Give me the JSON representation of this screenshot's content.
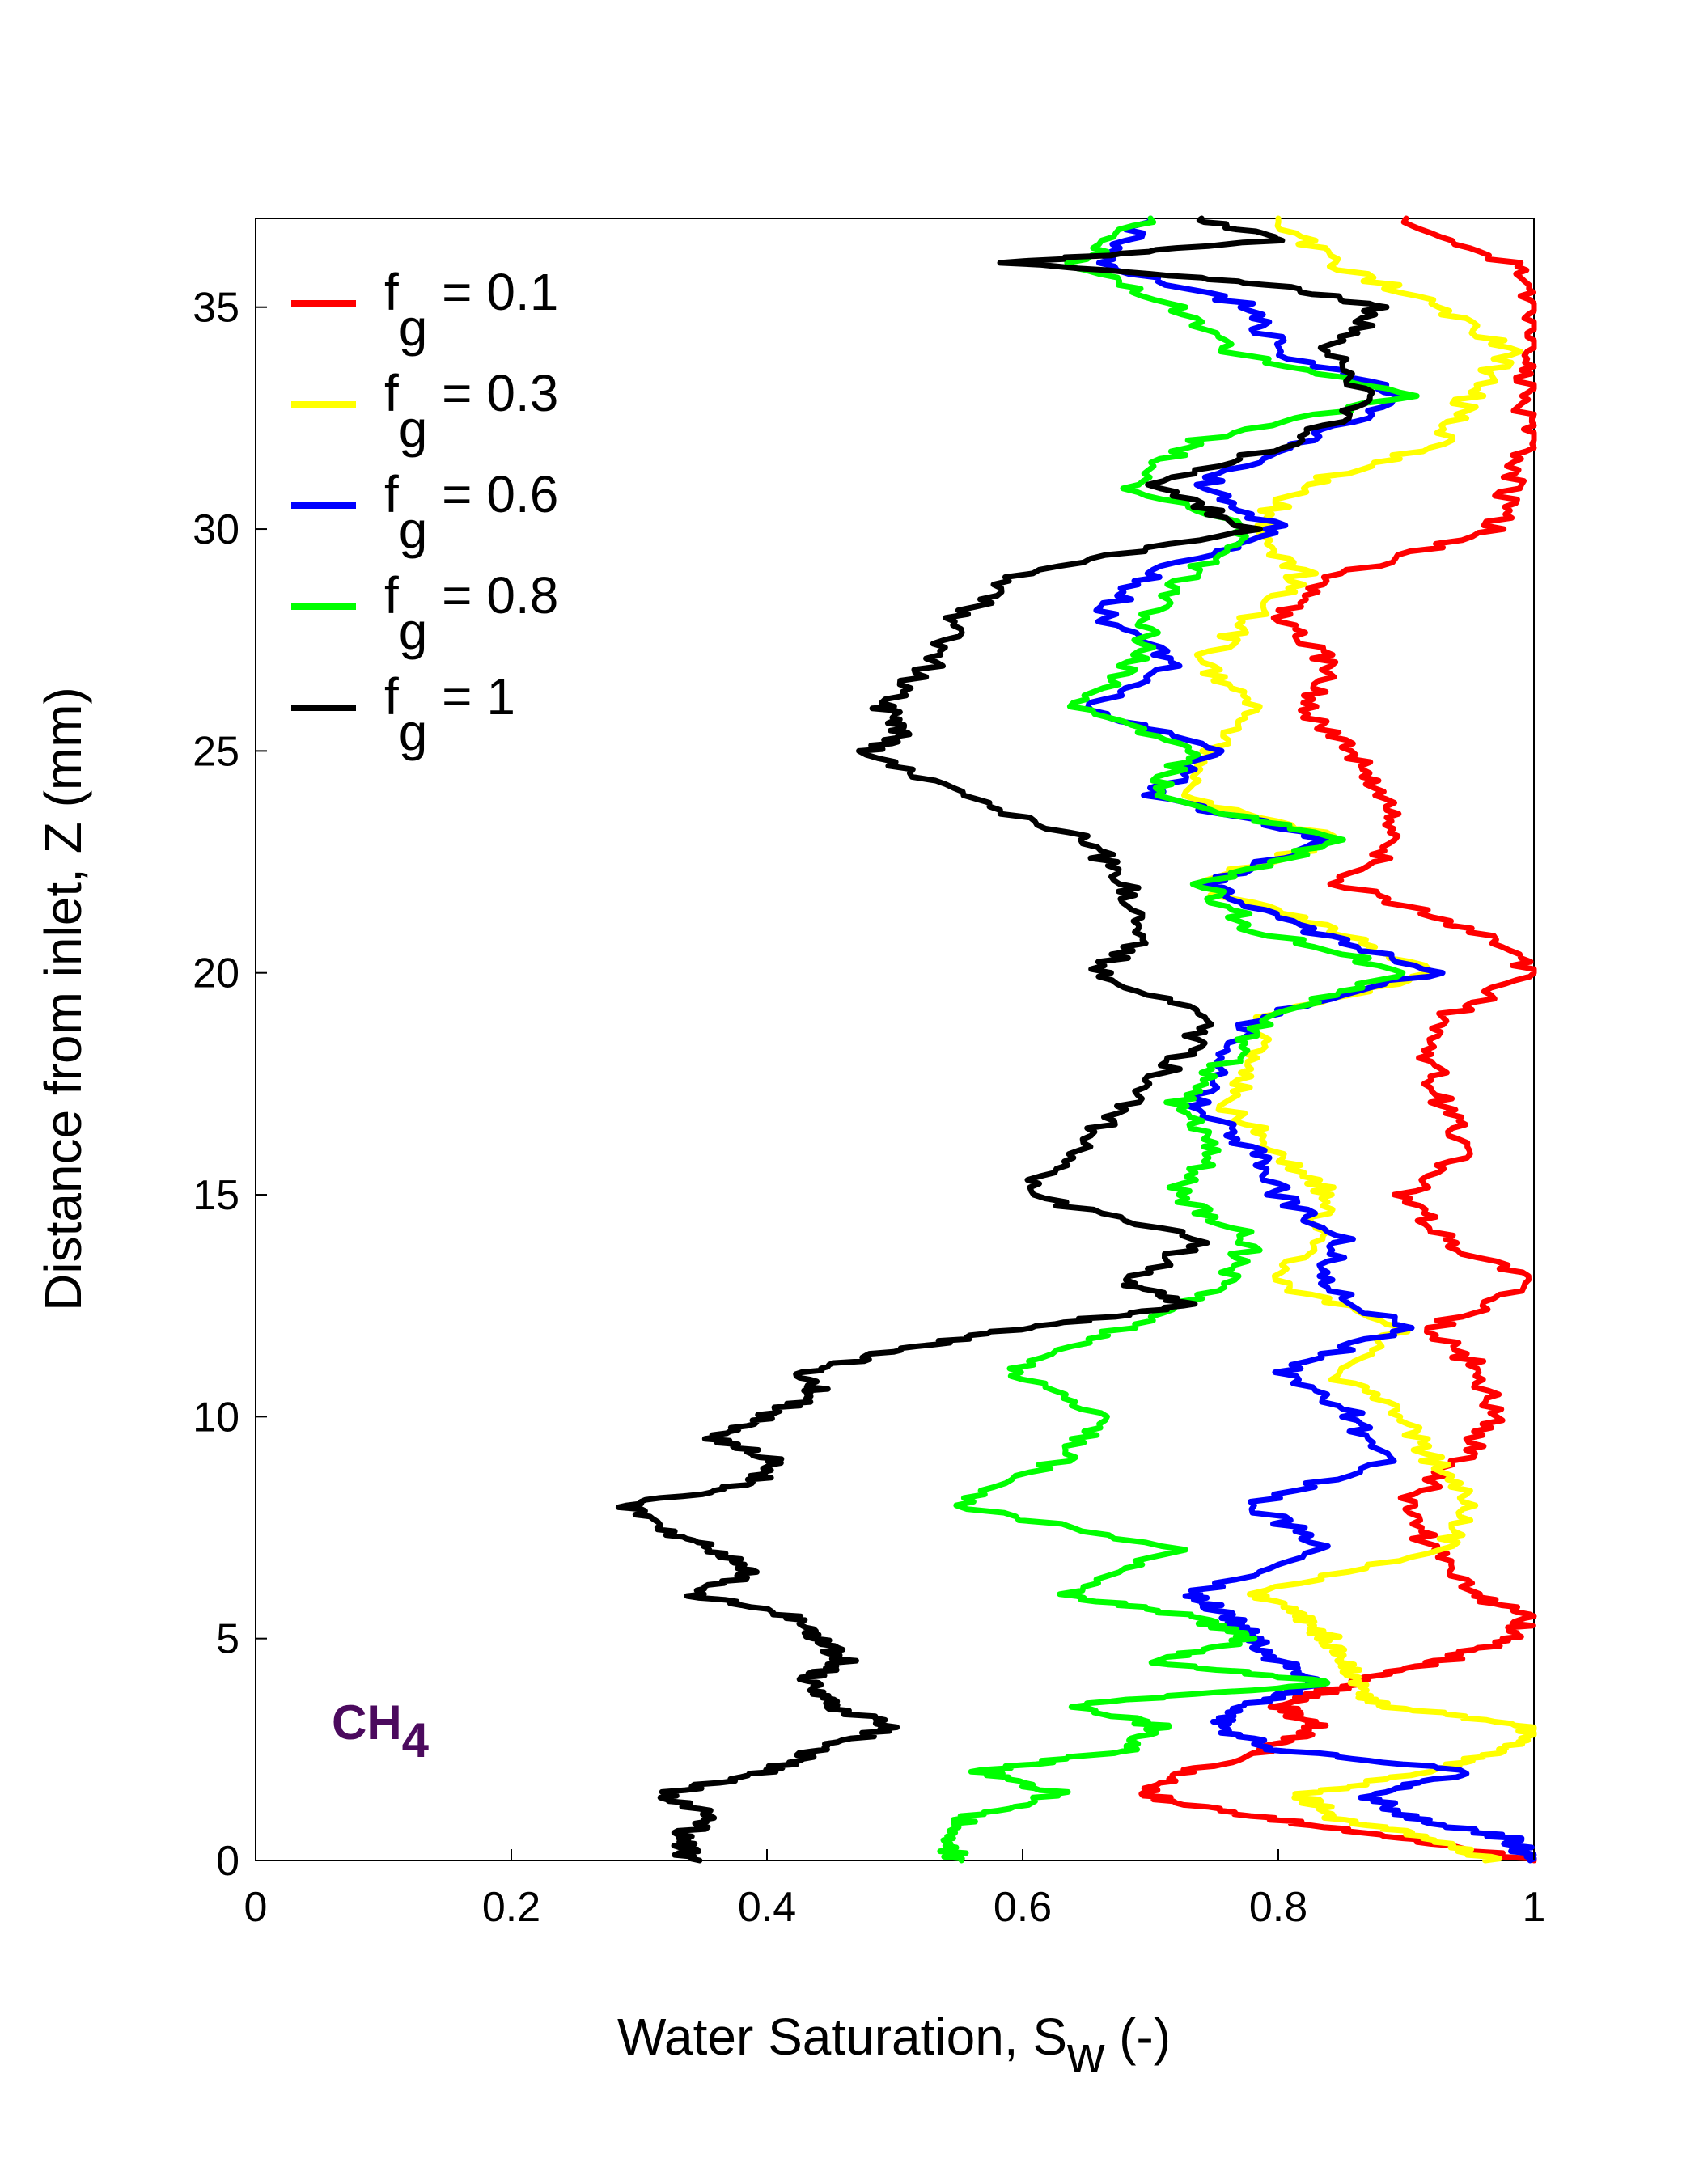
{
  "chart_data": {
    "type": "line",
    "orientation": "vertical-profile",
    "xlabel_main": "Water Saturation, S",
    "xlabel_sub": "w",
    "xlabel_tail": " (-)",
    "ylabel": "Distance from inlet, Z (mm)",
    "xlim": [
      0,
      1
    ],
    "ylim": [
      0,
      37
    ],
    "xticks": [
      "0",
      "0.2",
      "0.4",
      "0.6",
      "0.8",
      "1"
    ],
    "yticks": [
      "0",
      "5",
      "10",
      "15",
      "20",
      "25",
      "30",
      "35"
    ],
    "annotation": {
      "main": "CH",
      "sub": "4",
      "color": "#4b0a5e"
    },
    "series": [
      {
        "name": "f = 0.1",
        "letter": "f",
        "sub": "g",
        "value": " = 0.1",
        "color": "#ff0000",
        "z": [
          0,
          0.5,
          1,
          1.5,
          2,
          2.5,
          3,
          3.5,
          4,
          4.5,
          5,
          5.5,
          6,
          7,
          8,
          9,
          10,
          11,
          12,
          13,
          14,
          15,
          16,
          17,
          18,
          19,
          20,
          21,
          22,
          23,
          24,
          25,
          26,
          27,
          28,
          29,
          30,
          31,
          32,
          33,
          34,
          35,
          36,
          37
        ],
        "sw": [
          1.0,
          0.9,
          0.78,
          0.69,
          0.73,
          0.79,
          0.83,
          0.8,
          0.86,
          0.93,
          0.98,
          1.0,
          0.95,
          0.92,
          0.9,
          0.94,
          0.97,
          0.96,
          0.92,
          1.0,
          0.93,
          0.9,
          0.95,
          0.93,
          0.92,
          0.93,
          1.0,
          0.95,
          0.85,
          0.9,
          0.88,
          0.86,
          0.82,
          0.84,
          0.8,
          0.85,
          0.97,
          0.98,
          1.0,
          0.99,
          1.0,
          1.0,
          0.98,
          0.9
        ]
      },
      {
        "name": "f = 0.3",
        "letter": "f",
        "sub": "g",
        "value": " = 0.3",
        "color": "#ffff00",
        "z": [
          0,
          0.5,
          1,
          1.5,
          2,
          2.5,
          3,
          3.5,
          4,
          4.5,
          5,
          5.5,
          6,
          7,
          8,
          9,
          10,
          11,
          12,
          13,
          14,
          15,
          16,
          17,
          18,
          19,
          20,
          21,
          22,
          23,
          24,
          25,
          26,
          27,
          28,
          29,
          30,
          31,
          32,
          33,
          34,
          35,
          36,
          37
        ],
        "sw": [
          0.97,
          0.92,
          0.84,
          0.82,
          0.92,
          0.98,
          1.0,
          0.88,
          0.86,
          0.85,
          0.84,
          0.82,
          0.78,
          0.93,
          0.95,
          0.92,
          0.9,
          0.84,
          0.9,
          0.8,
          0.83,
          0.84,
          0.8,
          0.76,
          0.78,
          0.79,
          0.92,
          0.84,
          0.73,
          0.85,
          0.72,
          0.75,
          0.78,
          0.74,
          0.78,
          0.82,
          0.78,
          0.82,
          0.93,
          0.95,
          0.98,
          0.93,
          0.84,
          0.8
        ]
      },
      {
        "name": "f = 0.6",
        "letter": "f",
        "sub": "g",
        "value": " = 0.6",
        "color": "#0000ff",
        "z": [
          0,
          0.5,
          1,
          1.5,
          2,
          2.5,
          3,
          3.5,
          4,
          4.5,
          5,
          5.5,
          6,
          7,
          8,
          9,
          10,
          11,
          12,
          13,
          14,
          15,
          16,
          17,
          18,
          19,
          20,
          21,
          22,
          23,
          24,
          25,
          26,
          27,
          28,
          29,
          30,
          31,
          32,
          33,
          34,
          35,
          36,
          37
        ],
        "sw": [
          1.0,
          0.98,
          0.9,
          0.87,
          0.95,
          0.8,
          0.75,
          0.78,
          0.83,
          0.8,
          0.78,
          0.76,
          0.73,
          0.84,
          0.78,
          0.88,
          0.86,
          0.8,
          0.9,
          0.83,
          0.85,
          0.8,
          0.78,
          0.74,
          0.76,
          0.78,
          0.92,
          0.82,
          0.74,
          0.84,
          0.7,
          0.75,
          0.65,
          0.72,
          0.66,
          0.7,
          0.8,
          0.74,
          0.82,
          0.9,
          0.8,
          0.78,
          0.66,
          0.7
        ]
      },
      {
        "name": "f = 0.8",
        "letter": "f",
        "sub": "g",
        "value": " = 0.8",
        "color": "#00ff00",
        "z": [
          0,
          0.5,
          1,
          1.5,
          2,
          2.5,
          3,
          3.5,
          4,
          4.5,
          5,
          5.5,
          6,
          7,
          8,
          9,
          10,
          11,
          12,
          13,
          14,
          15,
          16,
          17,
          18,
          19,
          20,
          21,
          22,
          23,
          24,
          25,
          26,
          27,
          28,
          29,
          30,
          31,
          32,
          33,
          34,
          35,
          36,
          37
        ],
        "sw": [
          0.55,
          0.54,
          0.56,
          0.63,
          0.57,
          0.68,
          0.71,
          0.64,
          0.84,
          0.7,
          0.78,
          0.73,
          0.63,
          0.72,
          0.55,
          0.63,
          0.66,
          0.59,
          0.68,
          0.76,
          0.78,
          0.72,
          0.75,
          0.72,
          0.76,
          0.79,
          0.9,
          0.78,
          0.74,
          0.85,
          0.7,
          0.73,
          0.64,
          0.69,
          0.7,
          0.73,
          0.78,
          0.68,
          0.74,
          0.9,
          0.76,
          0.72,
          0.64,
          0.7
        ]
      },
      {
        "name": "f = 1",
        "letter": "f",
        "sub": "g",
        "value": " = 1",
        "color": "#000000",
        "z": [
          0,
          0.5,
          1,
          1.5,
          2,
          2.5,
          3,
          3.5,
          4,
          4.5,
          5,
          5.5,
          6,
          6.5,
          7,
          7.5,
          8,
          8.5,
          9,
          9.5,
          10,
          10.5,
          11,
          11.5,
          12,
          12.5,
          13,
          14,
          15,
          16,
          17,
          18,
          19,
          20,
          21,
          22,
          23,
          24,
          25,
          25.5,
          26,
          27,
          28,
          29,
          30,
          31,
          32,
          33,
          34,
          35,
          35.5,
          36,
          36.5,
          37
        ],
        "sw": [
          0.34,
          0.33,
          0.36,
          0.32,
          0.4,
          0.44,
          0.5,
          0.45,
          0.43,
          0.46,
          0.44,
          0.42,
          0.34,
          0.39,
          0.36,
          0.31,
          0.29,
          0.39,
          0.41,
          0.36,
          0.4,
          0.44,
          0.43,
          0.5,
          0.6,
          0.73,
          0.68,
          0.74,
          0.6,
          0.64,
          0.68,
          0.72,
          0.75,
          0.66,
          0.7,
          0.68,
          0.65,
          0.55,
          0.48,
          0.51,
          0.49,
          0.53,
          0.55,
          0.6,
          0.78,
          0.7,
          0.82,
          0.87,
          0.84,
          0.88,
          0.8,
          0.59,
          0.8,
          0.74
        ]
      }
    ]
  }
}
